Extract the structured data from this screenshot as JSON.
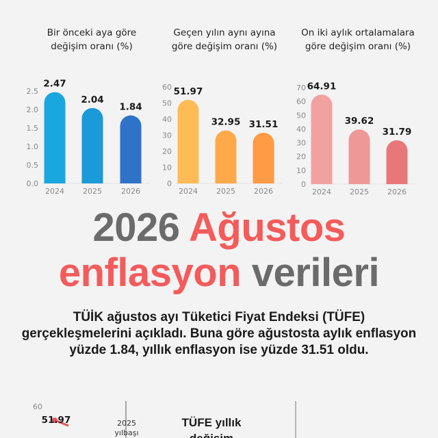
{
  "colors": {
    "blue": [
      "#1aa7e0",
      "#1a9ad8",
      "#2f73c9"
    ],
    "orange": [
      "#ffbb55",
      "#ffa94a",
      "#ff9a45"
    ],
    "red": [
      "#f2a1a1",
      "#ee9898",
      "#e8777a"
    ],
    "line": "#e8555a",
    "axis_text": "#888888",
    "grid": "#dddddd"
  },
  "chart_data": [
    {
      "type": "bar",
      "title": "Bir önceki aya göre değişim oranı (%)",
      "categories": [
        "2024",
        "2025",
        "2026"
      ],
      "values": [
        2.47,
        2.04,
        1.84
      ],
      "value_labels": [
        "2.47",
        "2.04",
        "1.84"
      ],
      "ylim": [
        0,
        2.5
      ],
      "yticks": [
        "0.0",
        "0.5",
        "1.0",
        "1.5",
        "2.0",
        "2.5"
      ],
      "grid": false
    },
    {
      "type": "bar",
      "title": "Geçen yılın aynı ayına göre değişim oranı (%)",
      "categories": [
        "2024",
        "2025",
        "2026"
      ],
      "values": [
        51.97,
        32.95,
        31.51
      ],
      "value_labels": [
        "51.97",
        "32.95",
        "31.51"
      ],
      "ylim": [
        0,
        60
      ],
      "yticks": [
        "0",
        "10",
        "20",
        "30",
        "40",
        "50",
        "60"
      ],
      "grid": false
    },
    {
      "type": "bar",
      "title": "On iki aylık ortalamalara göre değişim oranı (%)",
      "categories": [
        "2024",
        "2025",
        "2026"
      ],
      "values": [
        64.91,
        39.62,
        31.79
      ],
      "value_labels": [
        "64.91",
        "39.62",
        "31.79"
      ],
      "ylim": [
        0,
        70
      ],
      "yticks": [
        "0",
        "10",
        "20",
        "30",
        "40",
        "50",
        "60",
        "70"
      ],
      "grid": false
    },
    {
      "type": "line",
      "title": "TÜFE yıllık değişim",
      "ylim": [
        0,
        60
      ],
      "yticks": [
        "60"
      ],
      "values": [
        51.97
      ],
      "value_labels": [
        "51.97"
      ],
      "annotations": [
        "2025 yılbaşı"
      ]
    }
  ],
  "headline": {
    "part1": "2026",
    "part2": "Ağustos",
    "part3": "enflasyon",
    "part4": "verileri"
  },
  "description": "TÜİK ağustos ayı Tüketici Fiyat Endeksi (TÜFE) gerçekleşmelerini açıkladı. Buna göre ağustosta aylık enflasyon yüzde 1.84, yıllık enflasyon ise yüzde 31.51 oldu."
}
